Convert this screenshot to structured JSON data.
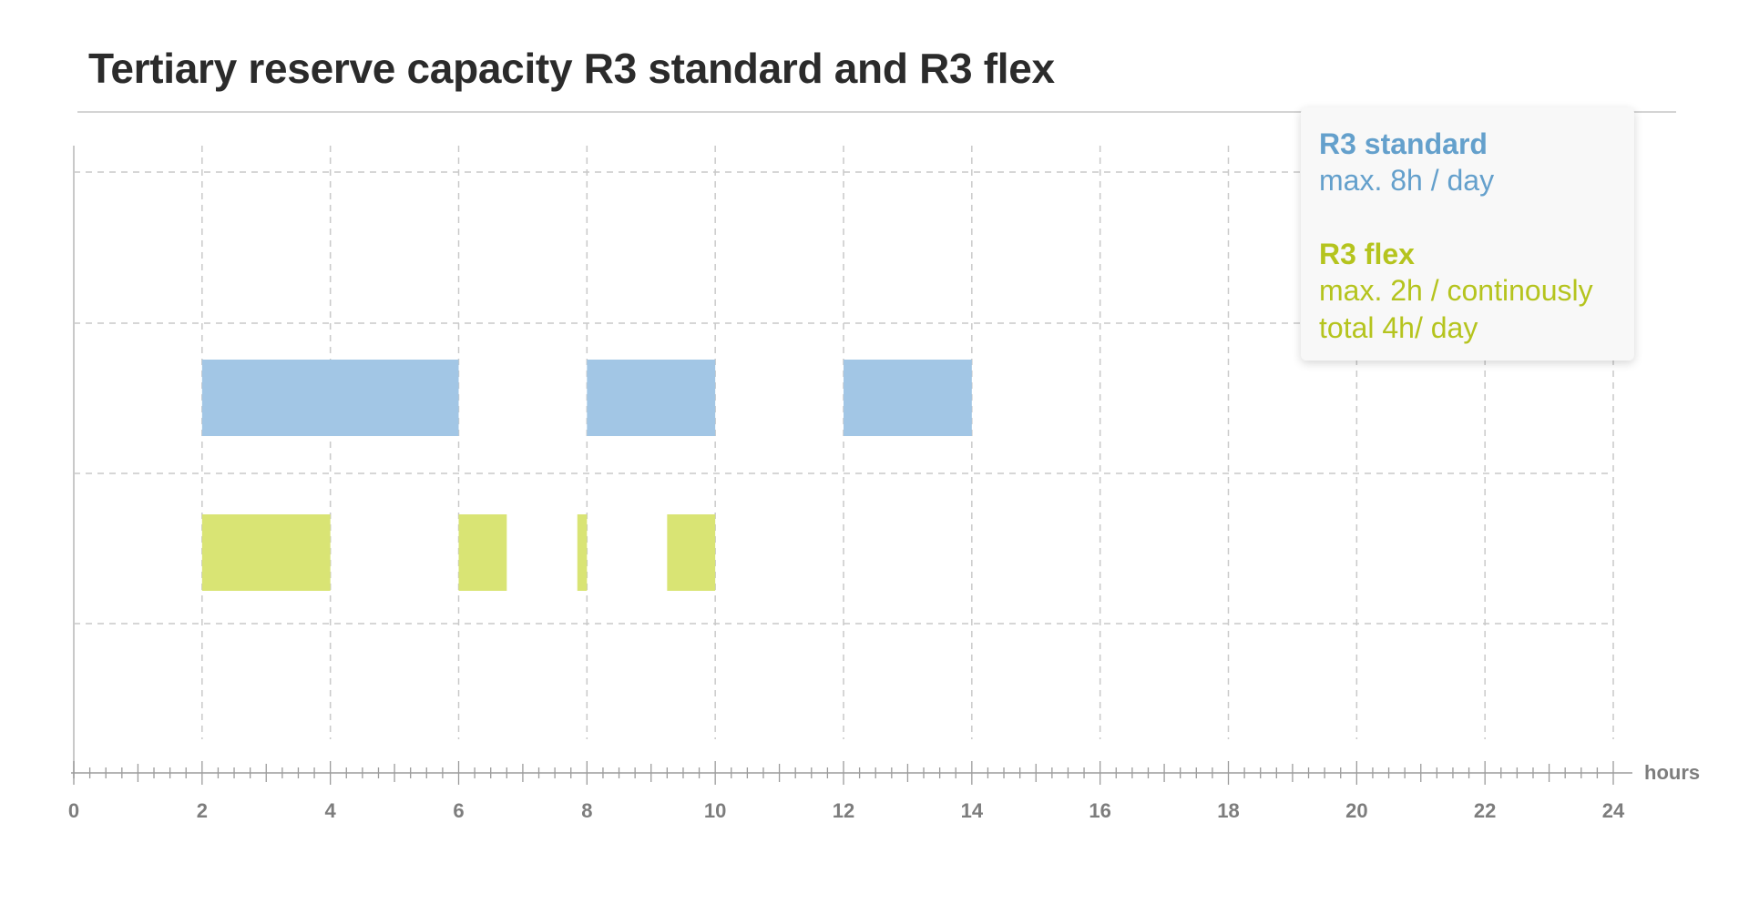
{
  "title": "Tertiary reserve capacity R3 standard and R3 flex",
  "legend": {
    "standard": {
      "title": "R3 standard",
      "lines": [
        "max. 8h / day"
      ]
    },
    "flex": {
      "title": "R3 flex",
      "lines": [
        "max. 2h / continously",
        "total 4h/ day"
      ]
    }
  },
  "colors": {
    "standard": "#a2c6e5",
    "flex": "#d9e474",
    "grid": "#c9c9c9",
    "axis": "#9b9b9b",
    "tick_label": "#7d7d7d"
  },
  "chart_data": {
    "type": "bar",
    "orientation": "horizontal-timeline",
    "xlabel": "hours",
    "xlim": [
      0,
      24
    ],
    "xticks": [
      "0",
      "2",
      "4",
      "6",
      "8",
      "10",
      "12",
      "14",
      "16",
      "18",
      "20",
      "22",
      "24"
    ],
    "minor_ticks_per_hour": 4,
    "grid": true,
    "legend_position": "top-right",
    "series": [
      {
        "name": "R3 standard",
        "color": "#a2c6e5",
        "intervals": [
          [
            2,
            6
          ],
          [
            8,
            10
          ],
          [
            12,
            14
          ]
        ]
      },
      {
        "name": "R3 flex",
        "color": "#d9e474",
        "intervals": [
          [
            2,
            4
          ],
          [
            6,
            6.75
          ],
          [
            7.85,
            8
          ],
          [
            9.25,
            10
          ]
        ]
      }
    ]
  }
}
